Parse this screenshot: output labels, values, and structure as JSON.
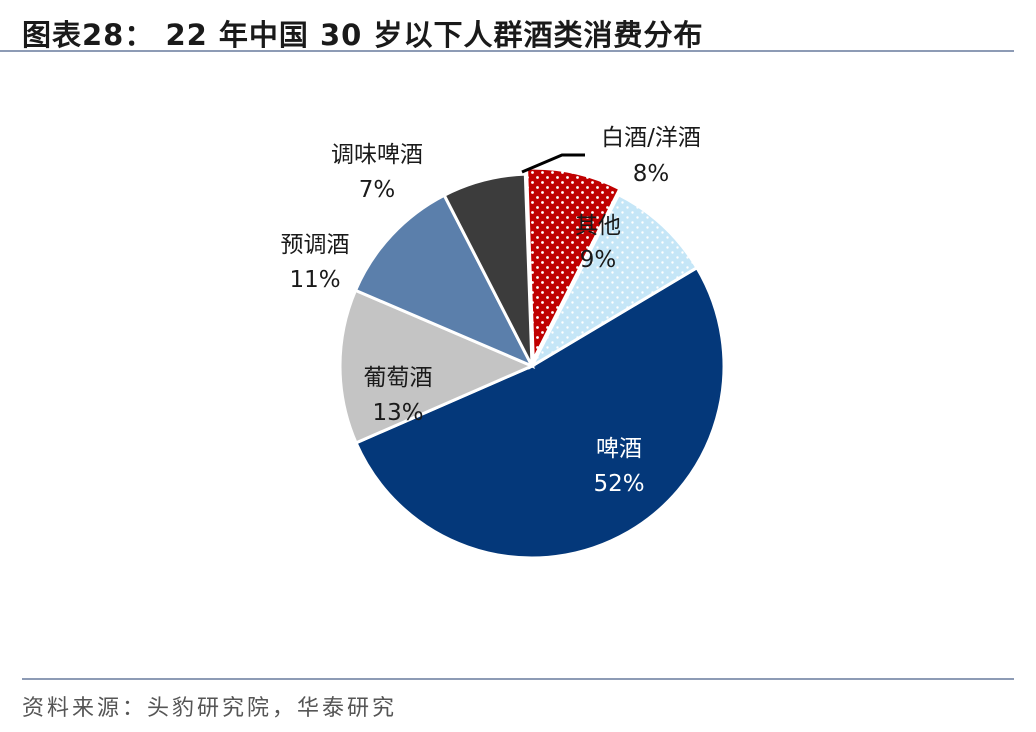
{
  "title": "图表28： 22 年中国 30 岁以下人群酒类消费分布",
  "source": "资料来源：头豹研究院，华泰研究",
  "colors": {
    "beer": "#04387a",
    "wine": "#c4c4c4",
    "premix": "#5b7fab",
    "flavored_beer": "#3c3c3c",
    "baijiu_yangjiu": "#c00000",
    "other": "#c5e6f7",
    "rule": "#8d9bb5"
  },
  "chart_data": {
    "type": "pie",
    "title": "",
    "slices": [
      {
        "label": "啤酒",
        "value": 52,
        "value_text": "52%",
        "color": "#04387a",
        "pattern": "none",
        "label_color": "#ffffff"
      },
      {
        "label": "葡萄酒",
        "value": 13,
        "value_text": "13%",
        "color": "#c4c4c4",
        "pattern": "none",
        "label_color": "#1a1a1a"
      },
      {
        "label": "预调酒",
        "value": 11,
        "value_text": "11%",
        "color": "#5b7fab",
        "pattern": "none",
        "label_color": "#1a1a1a"
      },
      {
        "label": "调味啤酒",
        "value": 7,
        "value_text": "7%",
        "color": "#3c3c3c",
        "pattern": "none",
        "label_color": "#1a1a1a"
      },
      {
        "label": "白酒/洋酒",
        "value": 8,
        "value_text": "8%",
        "color": "#c00000",
        "pattern": "white-dots",
        "label_color": "#1a1a1a"
      },
      {
        "label": "其他",
        "value": 9,
        "value_text": "9%",
        "color": "#c5e6f7",
        "pattern": "blue-dots",
        "label_color": "#1a1a1a"
      }
    ]
  }
}
